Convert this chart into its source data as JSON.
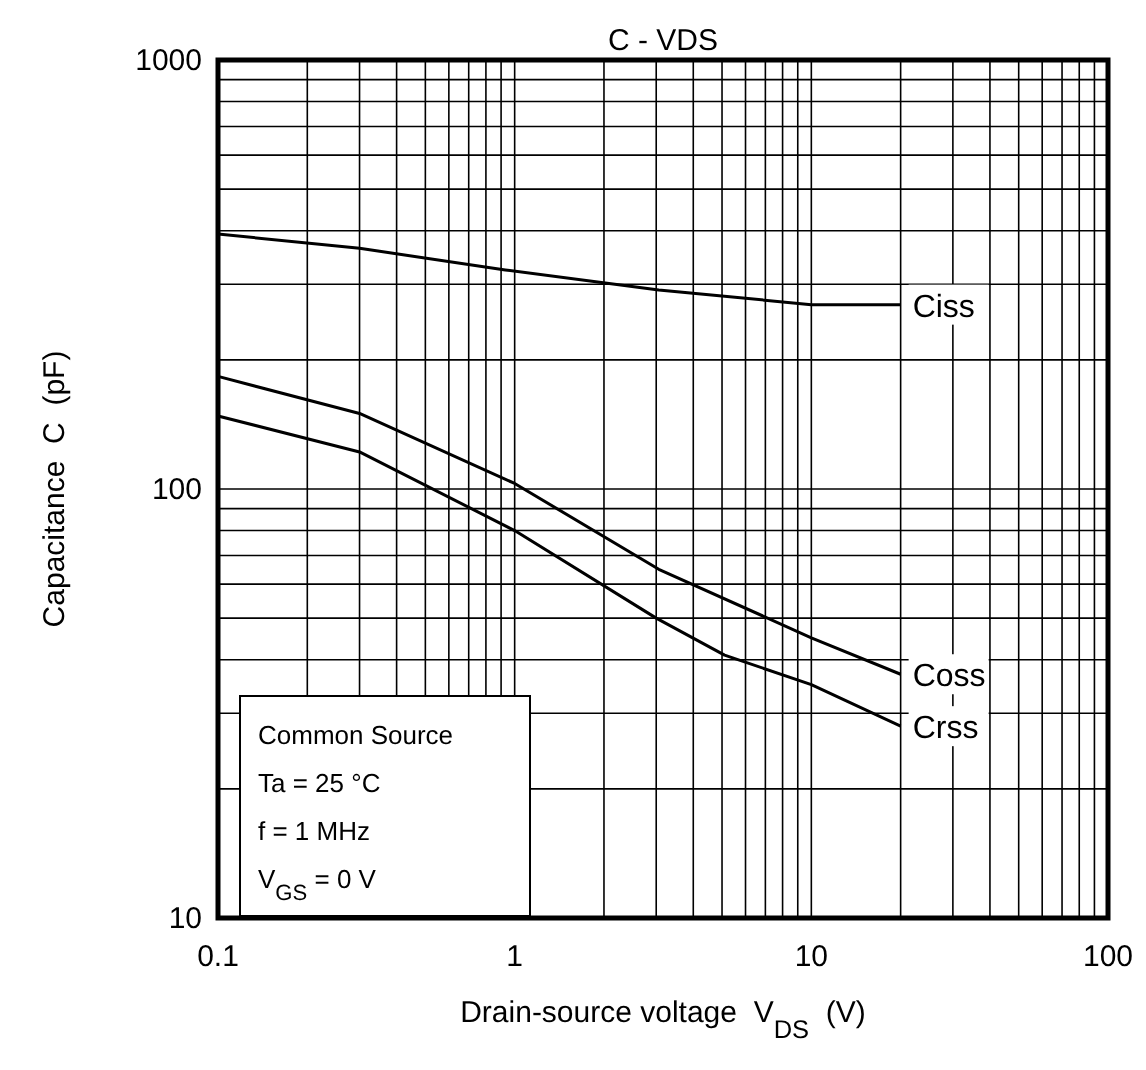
{
  "chart_data": {
    "type": "line",
    "title": "C - VDS",
    "xlabel": "Drain-source voltage  V$_{DS}$  (V)",
    "ylabel": "Capacitance  C  (pF)",
    "log": "xy",
    "grid": true,
    "legend": false,
    "marker": "none",
    "line_style": "solid",
    "xlim": [
      0.1,
      100
    ],
    "ylim": [
      10,
      1000
    ],
    "xticks": [
      0.1,
      {
        "value": 0.2,
        "label": null
      },
      {
        "value": 0.3,
        "label": null
      },
      {
        "value": 0.4,
        "label": null
      },
      {
        "value": 0.5,
        "label": null
      },
      {
        "value": 0.6,
        "label": null
      },
      {
        "value": 0.7,
        "label": null
      },
      {
        "value": 0.8,
        "label": null
      },
      {
        "value": 0.9,
        "label": null
      },
      1,
      {
        "value": 2,
        "label": null
      },
      {
        "value": 3,
        "label": null
      },
      {
        "value": 4,
        "label": null
      },
      {
        "value": 5,
        "label": null
      },
      {
        "value": 6,
        "label": null
      },
      {
        "value": 7,
        "label": null
      },
      {
        "value": 8,
        "label": null
      },
      {
        "value": 9,
        "label": null
      },
      10,
      {
        "value": 20,
        "label": null
      },
      {
        "value": 30,
        "label": null
      },
      {
        "value": 40,
        "label": null
      },
      {
        "value": 50,
        "label": null
      },
      {
        "value": 60,
        "label": null
      },
      {
        "value": 70,
        "label": null
      },
      {
        "value": 80,
        "label": null
      },
      {
        "value": 90,
        "label": null
      },
      100
    ],
    "yticks": [
      10,
      {
        "value": 20,
        "label": null
      },
      {
        "value": 30,
        "label": null
      },
      {
        "value": 40,
        "label": null
      },
      {
        "value": 50,
        "label": null
      },
      {
        "value": 60,
        "label": null
      },
      {
        "value": 70,
        "label": null
      },
      {
        "value": 80,
        "label": null
      },
      {
        "value": 90,
        "label": null
      },
      100,
      {
        "value": 200,
        "label": null
      },
      {
        "value": 300,
        "label": null
      },
      {
        "value": 400,
        "label": null
      },
      {
        "value": 500,
        "label": null
      },
      {
        "value": 600,
        "label": null
      },
      {
        "value": 700,
        "label": null
      },
      {
        "value": 800,
        "label": null
      },
      {
        "value": 900,
        "label": null
      },
      1000
    ],
    "series": [
      {
        "name": "Ciss",
        "color": "#000000",
        "x": [
          0.1,
          0.3,
          0.93,
          3.06,
          10,
          20
        ],
        "values": [
          393,
          364,
          324,
          291,
          269,
          269
        ]
      },
      {
        "name": "Coss",
        "color": "#000000",
        "x": [
          0.1,
          0.3,
          1,
          3.06,
          10,
          20
        ],
        "values": [
          183,
          150,
          103,
          65,
          45,
          37
        ]
      },
      {
        "name": "Crss",
        "color": "#000000",
        "x": [
          0.1,
          0.3,
          1,
          3,
          5.1,
          10,
          20
        ],
        "values": [
          148,
          122,
          80,
          50,
          41,
          35,
          28
        ]
      }
    ],
    "annotations": [
      "Common Source",
      "Ta = 25 °C",
      "f = 1 MHz",
      "V$_{GS}$ = 0 V"
    ]
  }
}
